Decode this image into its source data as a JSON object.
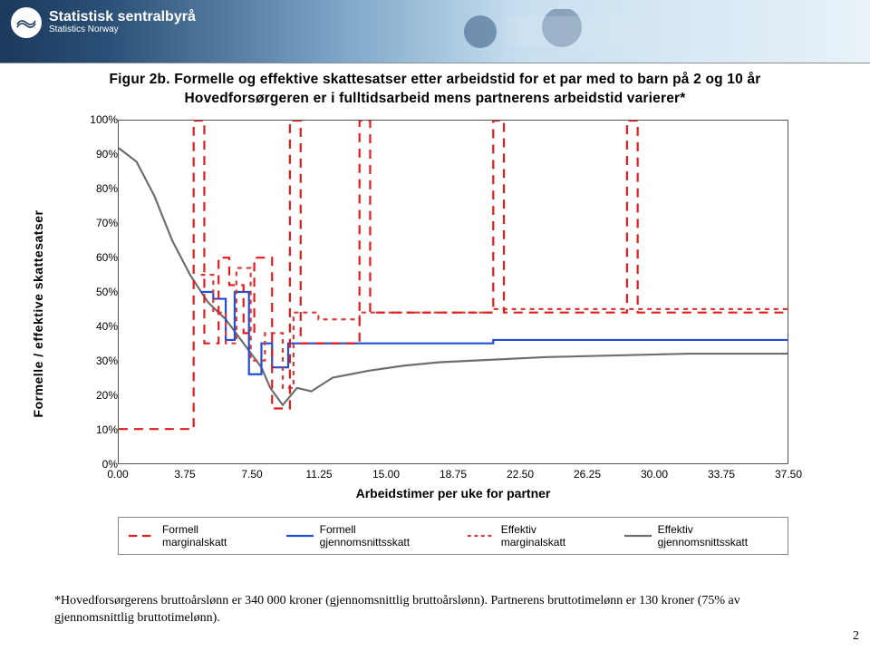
{
  "logo": {
    "line1": "Statistisk sentralbyrå",
    "line2": "Statistics Norway"
  },
  "chart": {
    "title_l1": "Figur 2b. Formelle og effektive skattesatser etter arbeidstid for et par med to barn på 2 og 10 år",
    "title_l2": "Hovedforsørgeren er i fulltidsarbeid mens partnerens arbeidstid varierer*",
    "ylabel": "Formelle / effektive skattesatser",
    "xlabel": "Arbeidstimer per uke for partner",
    "xlim": [
      0,
      37.5
    ],
    "ylim": [
      0,
      100
    ],
    "xtick_labels": [
      "0.00",
      "3.75",
      "7.50",
      "11.25",
      "15.00",
      "18.75",
      "22.50",
      "26.25",
      "30.00",
      "33.75",
      "37.50"
    ],
    "xtick_vals": [
      0,
      3.75,
      7.5,
      11.25,
      15,
      18.75,
      22.5,
      26.25,
      30,
      33.75,
      37.5
    ],
    "ytick_labels": [
      "0%",
      "10%",
      "20%",
      "30%",
      "40%",
      "50%",
      "60%",
      "70%",
      "80%",
      "90%",
      "100%"
    ],
    "ytick_vals": [
      0,
      10,
      20,
      30,
      40,
      50,
      60,
      70,
      80,
      90,
      100
    ],
    "colors": {
      "formell_marginal": "#e21b1b",
      "formell_avg": "#1f4fd6",
      "effektiv_marginal": "#d63b3b",
      "effektiv_avg": "#6e6e6e",
      "frame": "#555555",
      "background": "#ffffff"
    },
    "line_width": 2.2,
    "legend": [
      {
        "label": "Formell marginalskatt",
        "color": "#e21b1b",
        "dash": "10,6"
      },
      {
        "label": "Formell gjennomsnittsskatt",
        "color": "#1f4fd6",
        "dash": null
      },
      {
        "label": "Effektiv marginalskatt",
        "color": "#d63b3b",
        "dash": "4,4"
      },
      {
        "label": "Effektiv gjennomsnittsskatt",
        "color": "#6e6e6e",
        "dash": null
      }
    ],
    "series": {
      "formell_marginal": [
        {
          "x": 0,
          "y": 10
        },
        {
          "x": 4.2,
          "y": 10
        },
        {
          "x": 4.2,
          "y": 100
        },
        {
          "x": 4.8,
          "y": 100
        },
        {
          "x": 4.8,
          "y": 35
        },
        {
          "x": 5.6,
          "y": 35
        },
        {
          "x": 5.6,
          "y": 60
        },
        {
          "x": 6.2,
          "y": 60
        },
        {
          "x": 6.2,
          "y": 52
        },
        {
          "x": 7.0,
          "y": 52
        },
        {
          "x": 7.0,
          "y": 38
        },
        {
          "x": 7.6,
          "y": 38
        },
        {
          "x": 7.6,
          "y": 60
        },
        {
          "x": 8.6,
          "y": 60
        },
        {
          "x": 8.6,
          "y": 16
        },
        {
          "x": 9.6,
          "y": 16
        },
        {
          "x": 9.6,
          "y": 100
        },
        {
          "x": 10.2,
          "y": 100
        },
        {
          "x": 10.2,
          "y": 35
        },
        {
          "x": 13.5,
          "y": 35
        },
        {
          "x": 13.5,
          "y": 100
        },
        {
          "x": 14.1,
          "y": 100
        },
        {
          "x": 14.1,
          "y": 44
        },
        {
          "x": 21.0,
          "y": 44
        },
        {
          "x": 21.0,
          "y": 100
        },
        {
          "x": 21.6,
          "y": 100
        },
        {
          "x": 21.6,
          "y": 44
        },
        {
          "x": 28.5,
          "y": 44
        },
        {
          "x": 28.5,
          "y": 100
        },
        {
          "x": 29.1,
          "y": 100
        },
        {
          "x": 29.1,
          "y": 44
        },
        {
          "x": 37.5,
          "y": 44
        }
      ],
      "formell_avg": [
        {
          "x": 0,
          "y": null
        },
        {
          "x": 4.6,
          "y": 50
        },
        {
          "x": 5.3,
          "y": 50
        },
        {
          "x": 5.3,
          "y": 48
        },
        {
          "x": 6.0,
          "y": 48
        },
        {
          "x": 6.0,
          "y": 36
        },
        {
          "x": 6.5,
          "y": 36
        },
        {
          "x": 6.5,
          "y": 50
        },
        {
          "x": 7.3,
          "y": 50
        },
        {
          "x": 7.3,
          "y": 26
        },
        {
          "x": 8.0,
          "y": 26
        },
        {
          "x": 8.0,
          "y": 35
        },
        {
          "x": 8.6,
          "y": 35
        },
        {
          "x": 8.6,
          "y": 28
        },
        {
          "x": 9.5,
          "y": 28
        },
        {
          "x": 9.5,
          "y": 35
        },
        {
          "x": 10.2,
          "y": 35
        },
        {
          "x": 10.3,
          "y": 35
        },
        {
          "x": 21.0,
          "y": 35
        },
        {
          "x": 21.0,
          "y": 36
        },
        {
          "x": 37.5,
          "y": 36
        }
      ],
      "effektiv_marginal": [
        {
          "x": 0,
          "y": null
        },
        {
          "x": 4.6,
          "y": 55
        },
        {
          "x": 5.3,
          "y": 55
        },
        {
          "x": 5.3,
          "y": 44
        },
        {
          "x": 6.0,
          "y": 44
        },
        {
          "x": 6.0,
          "y": 35
        },
        {
          "x": 6.6,
          "y": 35
        },
        {
          "x": 6.6,
          "y": 57
        },
        {
          "x": 7.4,
          "y": 57
        },
        {
          "x": 7.4,
          "y": 30
        },
        {
          "x": 8.2,
          "y": 30
        },
        {
          "x": 8.2,
          "y": 38
        },
        {
          "x": 9.2,
          "y": 38
        },
        {
          "x": 9.2,
          "y": 22
        },
        {
          "x": 9.8,
          "y": 22
        },
        {
          "x": 9.8,
          "y": 44
        },
        {
          "x": 11.2,
          "y": 44
        },
        {
          "x": 11.2,
          "y": 42
        },
        {
          "x": 13.5,
          "y": 42
        },
        {
          "x": 13.5,
          "y": 44
        },
        {
          "x": 21.0,
          "y": 44
        },
        {
          "x": 21.0,
          "y": 45
        },
        {
          "x": 28.5,
          "y": 45
        },
        {
          "x": 28.5,
          "y": 45
        },
        {
          "x": 37.5,
          "y": 45
        }
      ],
      "effektiv_avg": [
        {
          "x": 0,
          "y": 92
        },
        {
          "x": 1.0,
          "y": 88
        },
        {
          "x": 2.0,
          "y": 78
        },
        {
          "x": 3.0,
          "y": 65
        },
        {
          "x": 4.0,
          "y": 55
        },
        {
          "x": 5.0,
          "y": 47
        },
        {
          "x": 6.0,
          "y": 42
        },
        {
          "x": 7.0,
          "y": 35
        },
        {
          "x": 8.0,
          "y": 28
        },
        {
          "x": 8.5,
          "y": 22
        },
        {
          "x": 9.2,
          "y": 17
        },
        {
          "x": 10.0,
          "y": 22
        },
        {
          "x": 10.8,
          "y": 21
        },
        {
          "x": 12.0,
          "y": 25
        },
        {
          "x": 14.0,
          "y": 27
        },
        {
          "x": 16.0,
          "y": 28.5
        },
        {
          "x": 18.0,
          "y": 29.5
        },
        {
          "x": 20.0,
          "y": 30
        },
        {
          "x": 24.0,
          "y": 31
        },
        {
          "x": 28.0,
          "y": 31.5
        },
        {
          "x": 32.0,
          "y": 32
        },
        {
          "x": 37.5,
          "y": 32
        }
      ]
    }
  },
  "footnote": "*Hovedforsørgerens bruttoårslønn er 340 000 kroner (gjennomsnittlig bruttoårslønn). Partnerens bruttotimelønn er 130 kroner (75% av gjennomsnittlig bruttotimelønn).",
  "page_number": "2"
}
